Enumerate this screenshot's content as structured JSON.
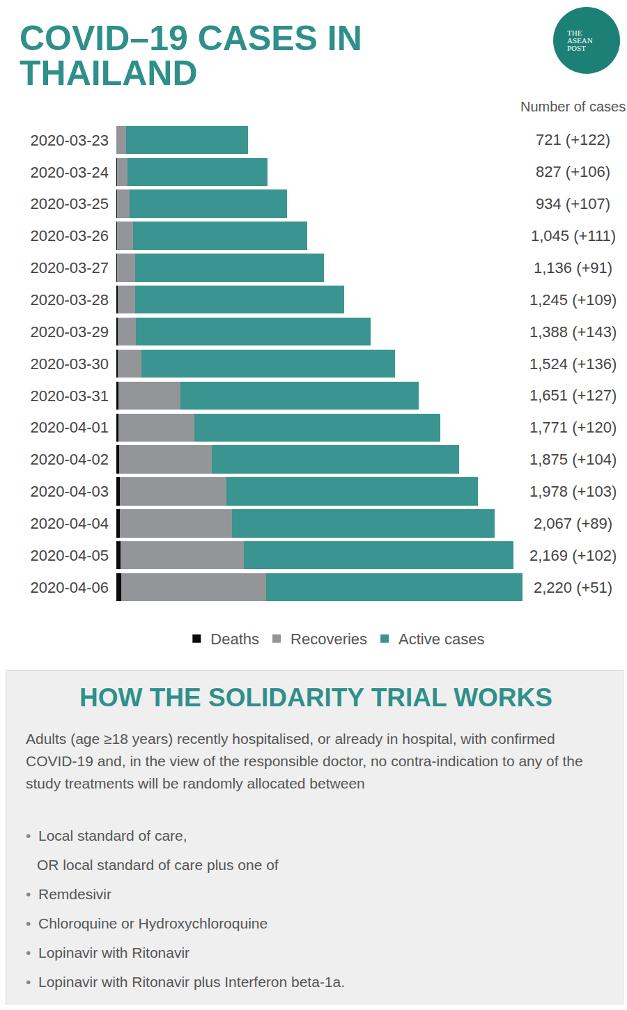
{
  "chart_data": {
    "type": "bar",
    "title": "COVID–19 CASES IN THAILAND",
    "orientation": "horizontal",
    "stacked": true,
    "tick_labels": "y",
    "legend": "bottom",
    "categories": [
      "2020-03-23",
      "2020-03-24",
      "2020-03-25",
      "2020-03-26",
      "2020-03-27",
      "2020-03-28",
      "2020-03-29",
      "2020-03-30",
      "2020-03-31",
      "2020-04-01",
      "2020-04-02",
      "2020-04-03",
      "2020-04-04",
      "2020-04-05",
      "2020-04-06"
    ],
    "series": [
      {
        "name": "Deaths",
        "color": "#0a0a0a",
        "values": [
          1,
          4,
          4,
          4,
          5,
          6,
          7,
          9,
          10,
          12,
          15,
          19,
          20,
          23,
          26
        ]
      },
      {
        "name": "Recoveries",
        "color": "#939598",
        "values": [
          52,
          57,
          70,
          88,
          97,
          97,
          100,
          127,
          342,
          416,
          505,
          581,
          612,
          674,
          793
        ]
      },
      {
        "name": "Active cases",
        "color": "#3a9490",
        "values": [
          668,
          766,
          860,
          953,
          1034,
          1142,
          1281,
          1388,
          1299,
          1343,
          1355,
          1378,
          1435,
          1472,
          1401
        ]
      }
    ],
    "xlim": [
      0,
      2220
    ],
    "total_header": "Number of cases",
    "total_labels": [
      "721 (+122)",
      "827 (+106)",
      "934 (+107)",
      "1,045 (+111)",
      "1,136 (+91)",
      "1,245 (+109)",
      "1,388 (+143)",
      "1,524 (+136)",
      "1,651 (+127)",
      "1,771 (+120)",
      "1,875 (+104)",
      "1,978 (+103)",
      "2,067 (+89)",
      "2,169 (+102)",
      "2,220 (+51)"
    ]
  },
  "logo": [
    "THE",
    "ASEAN",
    "POST"
  ],
  "trial": {
    "heading": "HOW THE SOLIDARITY TRIAL WORKS",
    "text": "Adults (age ≥18 years) recently hospitalised, or already in hospital, with confirmed COVID-19 and, in the view of the responsible doctor, no contra-indication to any of the study treatments will be randomly allocated between",
    "items": [
      {
        "text": "Local standard of care,",
        "bullet": true
      },
      {
        "text": "OR local standard of care plus one of",
        "bullet": false
      },
      {
        "text": "Remdesivir",
        "bullet": true
      },
      {
        "text": "Chloroquine or Hydroxychloroquine",
        "bullet": true
      },
      {
        "text": "Lopinavir with Ritonavir",
        "bullet": true
      },
      {
        "text": "Lopinavir with Ritonavir plus Interferon beta-1a.",
        "bullet": true
      }
    ]
  }
}
